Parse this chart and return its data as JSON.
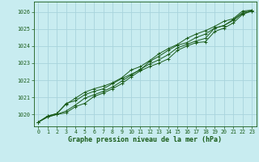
{
  "title": "Graphe pression niveau de la mer (hPa)",
  "background_color": "#c8ecf0",
  "grid_color": "#a8d4dc",
  "line_color": "#1a5c1a",
  "text_color": "#1a5c1a",
  "hours": [
    0,
    1,
    2,
    3,
    4,
    5,
    6,
    7,
    8,
    9,
    10,
    11,
    12,
    13,
    14,
    15,
    16,
    17,
    18,
    19,
    20,
    21,
    22,
    23
  ],
  "line1": [
    1019.55,
    1019.85,
    1020.0,
    1020.1,
    1020.45,
    1020.65,
    1021.05,
    1021.25,
    1021.5,
    1021.8,
    1022.2,
    1022.55,
    1022.8,
    1023.0,
    1023.25,
    1023.75,
    1024.0,
    1024.2,
    1024.25,
    1024.85,
    1025.05,
    1025.35,
    1025.85,
    1026.05
  ],
  "line2": [
    1019.55,
    1019.85,
    1020.0,
    1020.2,
    1020.55,
    1020.95,
    1021.15,
    1021.35,
    1021.6,
    1021.95,
    1022.3,
    1022.65,
    1022.95,
    1023.2,
    1023.5,
    1023.9,
    1024.1,
    1024.3,
    1024.45,
    1025.05,
    1025.2,
    1025.5,
    1025.9,
    1026.05
  ],
  "line3": [
    1019.55,
    1019.9,
    1020.05,
    1020.65,
    1020.8,
    1021.15,
    1021.35,
    1021.5,
    1021.8,
    1022.1,
    1022.35,
    1022.6,
    1023.1,
    1023.4,
    1023.75,
    1024.05,
    1024.2,
    1024.5,
    1024.7,
    1025.05,
    1025.2,
    1025.55,
    1025.95,
    1026.1
  ],
  "line4": [
    1019.55,
    1019.9,
    1020.05,
    1020.6,
    1020.95,
    1021.3,
    1021.5,
    1021.65,
    1021.85,
    1022.15,
    1022.6,
    1022.8,
    1023.15,
    1023.55,
    1023.85,
    1024.1,
    1024.45,
    1024.7,
    1024.9,
    1025.15,
    1025.45,
    1025.6,
    1026.05,
    1026.1
  ],
  "ylim": [
    1019.3,
    1026.6
  ],
  "yticks": [
    1020,
    1021,
    1022,
    1023,
    1024,
    1025,
    1026
  ],
  "xticks": [
    0,
    1,
    2,
    3,
    4,
    5,
    6,
    7,
    8,
    9,
    10,
    11,
    12,
    13,
    14,
    15,
    16,
    17,
    18,
    19,
    20,
    21,
    22,
    23
  ],
  "marker": "+",
  "markersize": 3.0,
  "linewidth": 0.7
}
